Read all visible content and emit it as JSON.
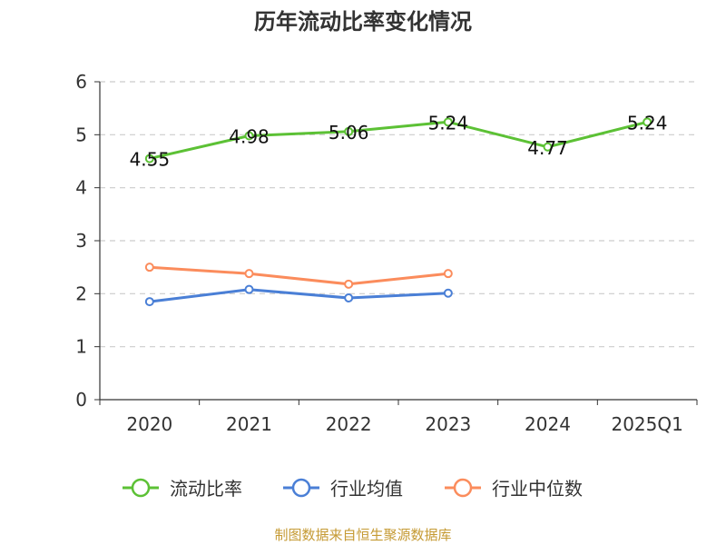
{
  "chart_data": {
    "type": "line",
    "title": "历年流动比率变化情况",
    "categories": [
      "2020",
      "2021",
      "2022",
      "2023",
      "2024",
      "2025Q1"
    ],
    "ylim": [
      0,
      6
    ],
    "yticks": [
      "0",
      "1",
      "2",
      "3",
      "4",
      "5",
      "6"
    ],
    "grid": true,
    "legend_position": "bottom",
    "series": [
      {
        "name": "流动比率",
        "color": "#5cc135",
        "values": [
          4.55,
          4.98,
          5.06,
          5.24,
          4.77,
          5.24
        ],
        "labels": [
          "4.55",
          "4.98",
          "5.06",
          "5.24",
          "4.77",
          "5.24"
        ]
      },
      {
        "name": "行业均值",
        "color": "#4a7fd6",
        "values": [
          1.85,
          2.08,
          1.92,
          2.01,
          null,
          null
        ]
      },
      {
        "name": "行业中位数",
        "color": "#fb8c5c",
        "values": [
          2.5,
          2.38,
          2.18,
          2.38,
          null,
          null
        ]
      }
    ],
    "source": "制图数据来自恒生聚源数据库"
  }
}
